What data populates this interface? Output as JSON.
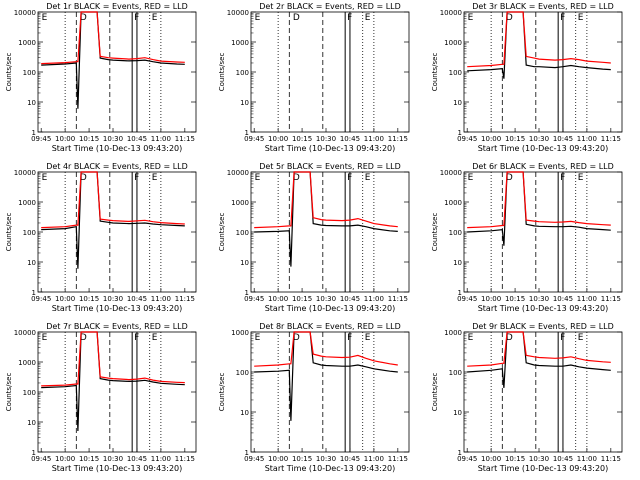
{
  "figure": {
    "x_ticks": [
      "09:45",
      "10:00",
      "10:15",
      "10:30",
      "10:45",
      "11:00",
      "11:15"
    ],
    "y_ticks": [
      "1",
      "10",
      "100",
      "1000",
      "10000"
    ],
    "xlabel": "Start Time (10-Dec-13 09:43:20)",
    "ylabel": "Counts/sec",
    "series_colors": {
      "Events": "#000000",
      "LLD": "#ff0000"
    }
  },
  "chart_data": [
    {
      "type": "line",
      "title": "Det 1r BLACK = Events, RED = LLD",
      "markers": [
        "E",
        "D",
        "F",
        "E"
      ],
      "ylim": [
        1,
        10000
      ],
      "yscale": "log",
      "x": [
        "09:45",
        "10:00",
        "10:07",
        "10:08",
        "10:10",
        "10:15",
        "10:20",
        "10:22",
        "10:27",
        "10:30",
        "10:40",
        "10:45",
        "10:50",
        "10:55",
        "11:00",
        "11:10",
        "11:15"
      ],
      "series": [
        {
          "name": "Events",
          "values": [
            170,
            185,
            200,
            6,
            10000,
            10000,
            10000,
            290,
            260,
            250,
            235,
            240,
            250,
            220,
            200,
            185,
            180
          ]
        },
        {
          "name": "LLD",
          "values": [
            190,
            205,
            220,
            220,
            10000,
            10000,
            10000,
            330,
            300,
            290,
            270,
            280,
            300,
            260,
            230,
            215,
            210
          ]
        }
      ]
    },
    {
      "type": "line",
      "title": "Det 2r BLACK = Events, RED = LLD",
      "markers": [
        "E",
        "D",
        "F",
        "E"
      ],
      "ylim": [
        1,
        10000
      ],
      "yscale": "log",
      "x": [],
      "series": []
    },
    {
      "type": "line",
      "title": "Det 3r BLACK = Events, RED = LLD",
      "markers": [
        "E",
        "D",
        "F",
        "E"
      ],
      "ylim": [
        1,
        10000
      ],
      "yscale": "log",
      "x": [
        "09:45",
        "10:00",
        "10:07",
        "10:08",
        "10:10",
        "10:15",
        "10:20",
        "10:22",
        "10:27",
        "10:30",
        "10:40",
        "10:45",
        "10:50",
        "10:55",
        "11:00",
        "11:10",
        "11:15"
      ],
      "series": [
        {
          "name": "Events",
          "values": [
            110,
            120,
            130,
            60,
            10000,
            10000,
            10000,
            170,
            150,
            150,
            140,
            150,
            165,
            150,
            140,
            125,
            120
          ]
        },
        {
          "name": "LLD",
          "values": [
            150,
            165,
            180,
            180,
            10000,
            10000,
            10000,
            330,
            290,
            270,
            250,
            260,
            280,
            260,
            230,
            210,
            200
          ]
        }
      ]
    },
    {
      "type": "line",
      "title": "Det 4r BLACK = Events, RED = LLD",
      "markers": [
        "E",
        "D",
        "F",
        "E"
      ],
      "ylim": [
        1,
        10000
      ],
      "yscale": "log",
      "x": [
        "09:45",
        "10:00",
        "10:07",
        "10:08",
        "10:10",
        "10:15",
        "10:20",
        "10:22",
        "10:27",
        "10:30",
        "10:40",
        "10:45",
        "10:50",
        "10:55",
        "11:00",
        "11:10",
        "11:15"
      ],
      "series": [
        {
          "name": "Events",
          "values": [
            120,
            130,
            150,
            6,
            10000,
            10000,
            10000,
            230,
            210,
            200,
            190,
            195,
            200,
            185,
            175,
            165,
            160
          ]
        },
        {
          "name": "LLD",
          "values": [
            140,
            150,
            170,
            170,
            10000,
            10000,
            10000,
            270,
            250,
            240,
            225,
            235,
            245,
            220,
            205,
            190,
            185
          ]
        }
      ]
    },
    {
      "type": "line",
      "title": "Det 5r BLACK = Events, RED = LLD",
      "markers": [
        "E",
        "D",
        "F",
        "E"
      ],
      "ylim": [
        1,
        10000
      ],
      "yscale": "log",
      "x": [
        "09:45",
        "10:00",
        "10:07",
        "10:08",
        "10:10",
        "10:15",
        "10:20",
        "10:22",
        "10:27",
        "10:30",
        "10:40",
        "10:45",
        "10:50",
        "10:55",
        "11:00",
        "11:10",
        "11:15"
      ],
      "series": [
        {
          "name": "Events",
          "values": [
            100,
            105,
            110,
            7,
            10000,
            10000,
            10000,
            190,
            170,
            165,
            160,
            160,
            170,
            150,
            130,
            110,
            105
          ]
        },
        {
          "name": "LLD",
          "values": [
            140,
            150,
            160,
            160,
            10000,
            10000,
            10000,
            300,
            260,
            250,
            240,
            250,
            280,
            230,
            190,
            160,
            150
          ]
        }
      ]
    },
    {
      "type": "line",
      "title": "Det 6r BLACK = Events, RED = LLD",
      "markers": [
        "E",
        "D",
        "F",
        "E"
      ],
      "ylim": [
        1,
        10000
      ],
      "yscale": "log",
      "x": [
        "09:45",
        "10:00",
        "10:07",
        "10:08",
        "10:10",
        "10:15",
        "10:20",
        "10:22",
        "10:27",
        "10:30",
        "10:40",
        "10:45",
        "10:50",
        "10:55",
        "11:00",
        "11:10",
        "11:15"
      ],
      "series": [
        {
          "name": "Events",
          "values": [
            100,
            110,
            120,
            35,
            10000,
            10000,
            10000,
            180,
            160,
            155,
            150,
            150,
            155,
            145,
            130,
            120,
            115
          ]
        },
        {
          "name": "LLD",
          "values": [
            140,
            150,
            165,
            165,
            10000,
            10000,
            10000,
            250,
            230,
            220,
            210,
            215,
            225,
            205,
            190,
            175,
            170
          ]
        }
      ]
    },
    {
      "type": "line",
      "title": "Det 7r BLACK = Events, RED = LLD",
      "markers": [
        "E",
        "D",
        "F",
        "E"
      ],
      "ylim": [
        1,
        10000
      ],
      "yscale": "log",
      "x": [
        "09:45",
        "10:00",
        "10:07",
        "10:08",
        "10:10",
        "10:15",
        "10:20",
        "10:22",
        "10:27",
        "10:30",
        "10:40",
        "10:45",
        "10:50",
        "10:55",
        "11:00",
        "11:10",
        "11:15"
      ],
      "series": [
        {
          "name": "Events",
          "values": [
            140,
            150,
            165,
            5,
            10000,
            10000,
            10000,
            280,
            250,
            240,
            225,
            230,
            245,
            215,
            195,
            180,
            175
          ]
        },
        {
          "name": "LLD",
          "values": [
            160,
            170,
            185,
            185,
            10000,
            10000,
            10000,
            320,
            290,
            280,
            260,
            270,
            290,
            250,
            225,
            210,
            205
          ]
        }
      ]
    },
    {
      "type": "line",
      "title": "Det 8r BLACK = Events, RED = LLD",
      "markers": [
        "E",
        "D",
        "F",
        "E"
      ],
      "ylim": [
        1,
        1000
      ],
      "yscale": "log",
      "x": [
        "09:45",
        "10:00",
        "10:07",
        "10:08",
        "10:10",
        "10:15",
        "10:20",
        "10:22",
        "10:27",
        "10:30",
        "10:40",
        "10:45",
        "10:50",
        "10:55",
        "11:00",
        "11:10",
        "11:15"
      ],
      "series": [
        {
          "name": "Events",
          "values": [
            100,
            105,
            110,
            6,
            1000,
            1000,
            1000,
            170,
            150,
            145,
            140,
            140,
            150,
            135,
            120,
            105,
            100
          ]
        },
        {
          "name": "LLD",
          "values": [
            140,
            150,
            160,
            160,
            1000,
            1000,
            1000,
            280,
            250,
            240,
            230,
            235,
            260,
            220,
            190,
            160,
            150
          ]
        }
      ]
    },
    {
      "type": "line",
      "title": "Det 9r BLACK = Events, RED = LLD",
      "markers": [
        "E",
        "D",
        "F",
        "E"
      ],
      "ylim": [
        1,
        1000
      ],
      "yscale": "log",
      "x": [
        "09:45",
        "10:00",
        "10:07",
        "10:08",
        "10:10",
        "10:15",
        "10:20",
        "10:22",
        "10:27",
        "10:30",
        "10:40",
        "10:45",
        "10:50",
        "10:55",
        "11:00",
        "11:10",
        "11:15"
      ],
      "series": [
        {
          "name": "Events",
          "values": [
            100,
            110,
            120,
            40,
            1000,
            1000,
            1000,
            170,
            150,
            145,
            140,
            140,
            150,
            135,
            125,
            115,
            110
          ]
        },
        {
          "name": "LLD",
          "values": [
            140,
            150,
            165,
            165,
            1000,
            1000,
            1000,
            260,
            240,
            230,
            220,
            225,
            240,
            215,
            195,
            180,
            175
          ]
        }
      ]
    }
  ]
}
